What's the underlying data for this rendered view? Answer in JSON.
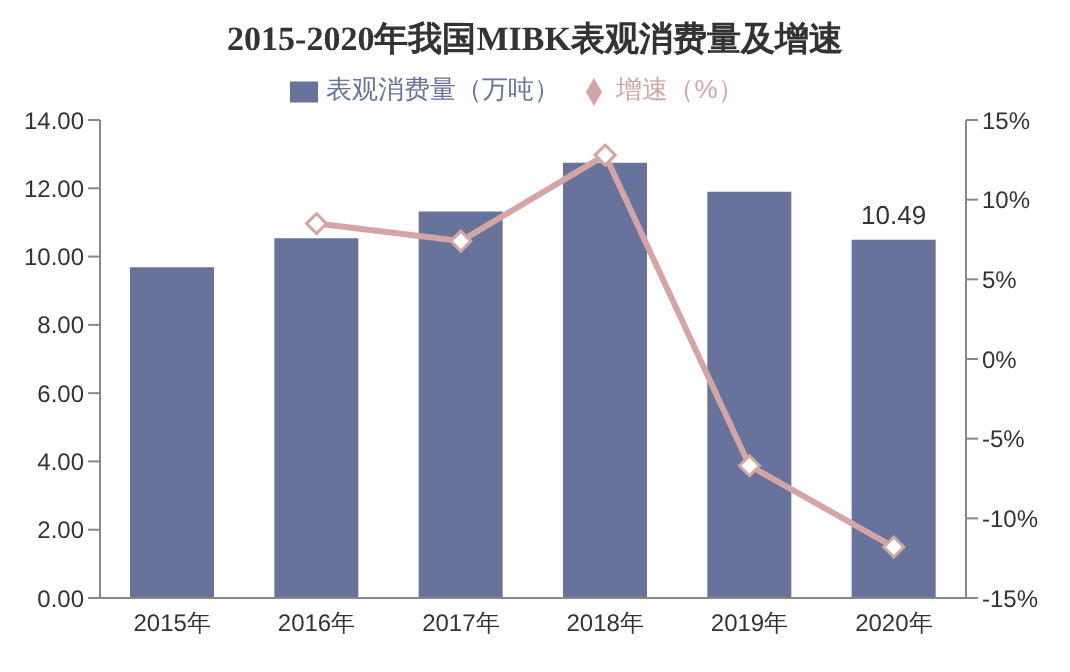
{
  "chart_data": {
    "type": "bar",
    "title": "2015-2020年我国MIBK表观消费量及增速",
    "categories": [
      "2015年",
      "2016年",
      "2017年",
      "2018年",
      "2019年",
      "2020年"
    ],
    "series": [
      {
        "name": "表观消费量（万吨）",
        "color": "#67739b",
        "values": [
          9.69,
          10.54,
          11.32,
          12.75,
          11.9,
          10.49
        ],
        "value_labels": [
          null,
          null,
          null,
          null,
          null,
          "10.49"
        ]
      },
      {
        "name": "增速（%）",
        "type": "line",
        "axis": "y2",
        "color": "#d4a5a5",
        "marker": "diamond",
        "values": [
          null,
          8.5,
          7.4,
          12.8,
          -6.7,
          -11.8
        ]
      }
    ],
    "ylim": [
      0,
      14
    ],
    "yticks": [
      {
        "value": 0,
        "label": "0.00"
      },
      {
        "value": 2,
        "label": "2.00"
      },
      {
        "value": 4,
        "label": "4.00"
      },
      {
        "value": 6,
        "label": "6.00"
      },
      {
        "value": 8,
        "label": "8.00"
      },
      {
        "value": 10,
        "label": "10.00"
      },
      {
        "value": 12,
        "label": "12.00"
      },
      {
        "value": 14,
        "label": "14.00"
      }
    ],
    "y2lim": [
      -15,
      15
    ],
    "y2ticks": [
      {
        "value": -15,
        "label": "-15%"
      },
      {
        "value": -10,
        "label": "-10%"
      },
      {
        "value": -5,
        "label": "-5%"
      },
      {
        "value": 0,
        "label": "0%"
      },
      {
        "value": 5,
        "label": "5%"
      },
      {
        "value": 10,
        "label": "10%"
      },
      {
        "value": 15,
        "label": "15%"
      }
    ],
    "grid": false,
    "legend": "top"
  }
}
